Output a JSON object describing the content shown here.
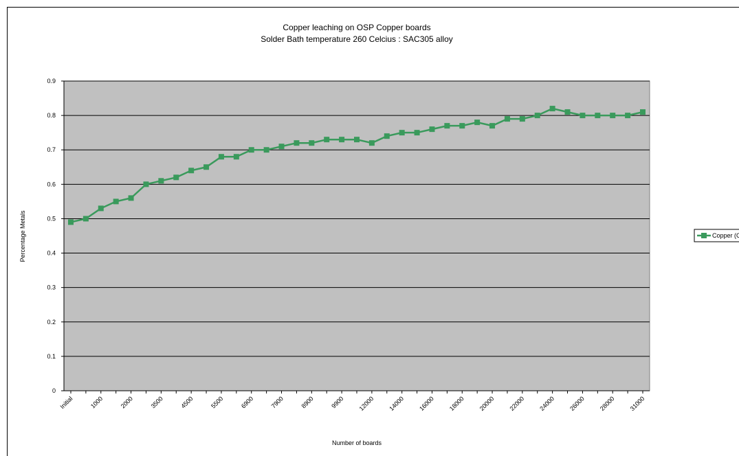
{
  "chart_data": {
    "type": "line",
    "title": "Copper leaching on OSP Copper boards",
    "subtitle": "Solder Bath temperature 260 Celcius :  SAC305 alloy",
    "x_label": "Number of boards",
    "y_label": "Percentage Metals",
    "categories": [
      "Initial",
      null,
      "1000",
      null,
      "2000",
      null,
      "3500",
      null,
      "4500",
      null,
      "5500",
      null,
      "6900",
      null,
      "7900",
      null,
      "8900",
      null,
      "9900",
      null,
      "12000",
      null,
      "14000",
      null,
      "16000",
      null,
      "18000",
      null,
      "20000",
      null,
      "22000",
      null,
      "24000",
      null,
      "26000",
      null,
      "28000",
      null,
      "31000"
    ],
    "series": [
      {
        "name": "Copper (Cu)",
        "color": "#3a9a5c",
        "values": [
          0.49,
          0.5,
          0.53,
          0.55,
          0.56,
          0.6,
          0.61,
          0.62,
          0.64,
          0.65,
          0.68,
          0.68,
          0.7,
          0.7,
          0.71,
          0.72,
          0.72,
          0.73,
          0.73,
          0.73,
          0.72,
          0.74,
          0.75,
          0.75,
          0.76,
          0.77,
          0.77,
          0.78,
          0.77,
          0.79,
          0.79,
          0.8,
          0.82,
          0.81,
          0.8,
          0.8,
          0.8,
          0.8,
          0.81
        ]
      }
    ],
    "ylim": [
      0,
      0.9
    ],
    "yticks": [
      0,
      0.1,
      0.2,
      0.3,
      0.4,
      0.5,
      0.6,
      0.7,
      0.8,
      0.9
    ],
    "grid": true,
    "plot_background": "#c0c0c0",
    "legend": "right"
  }
}
